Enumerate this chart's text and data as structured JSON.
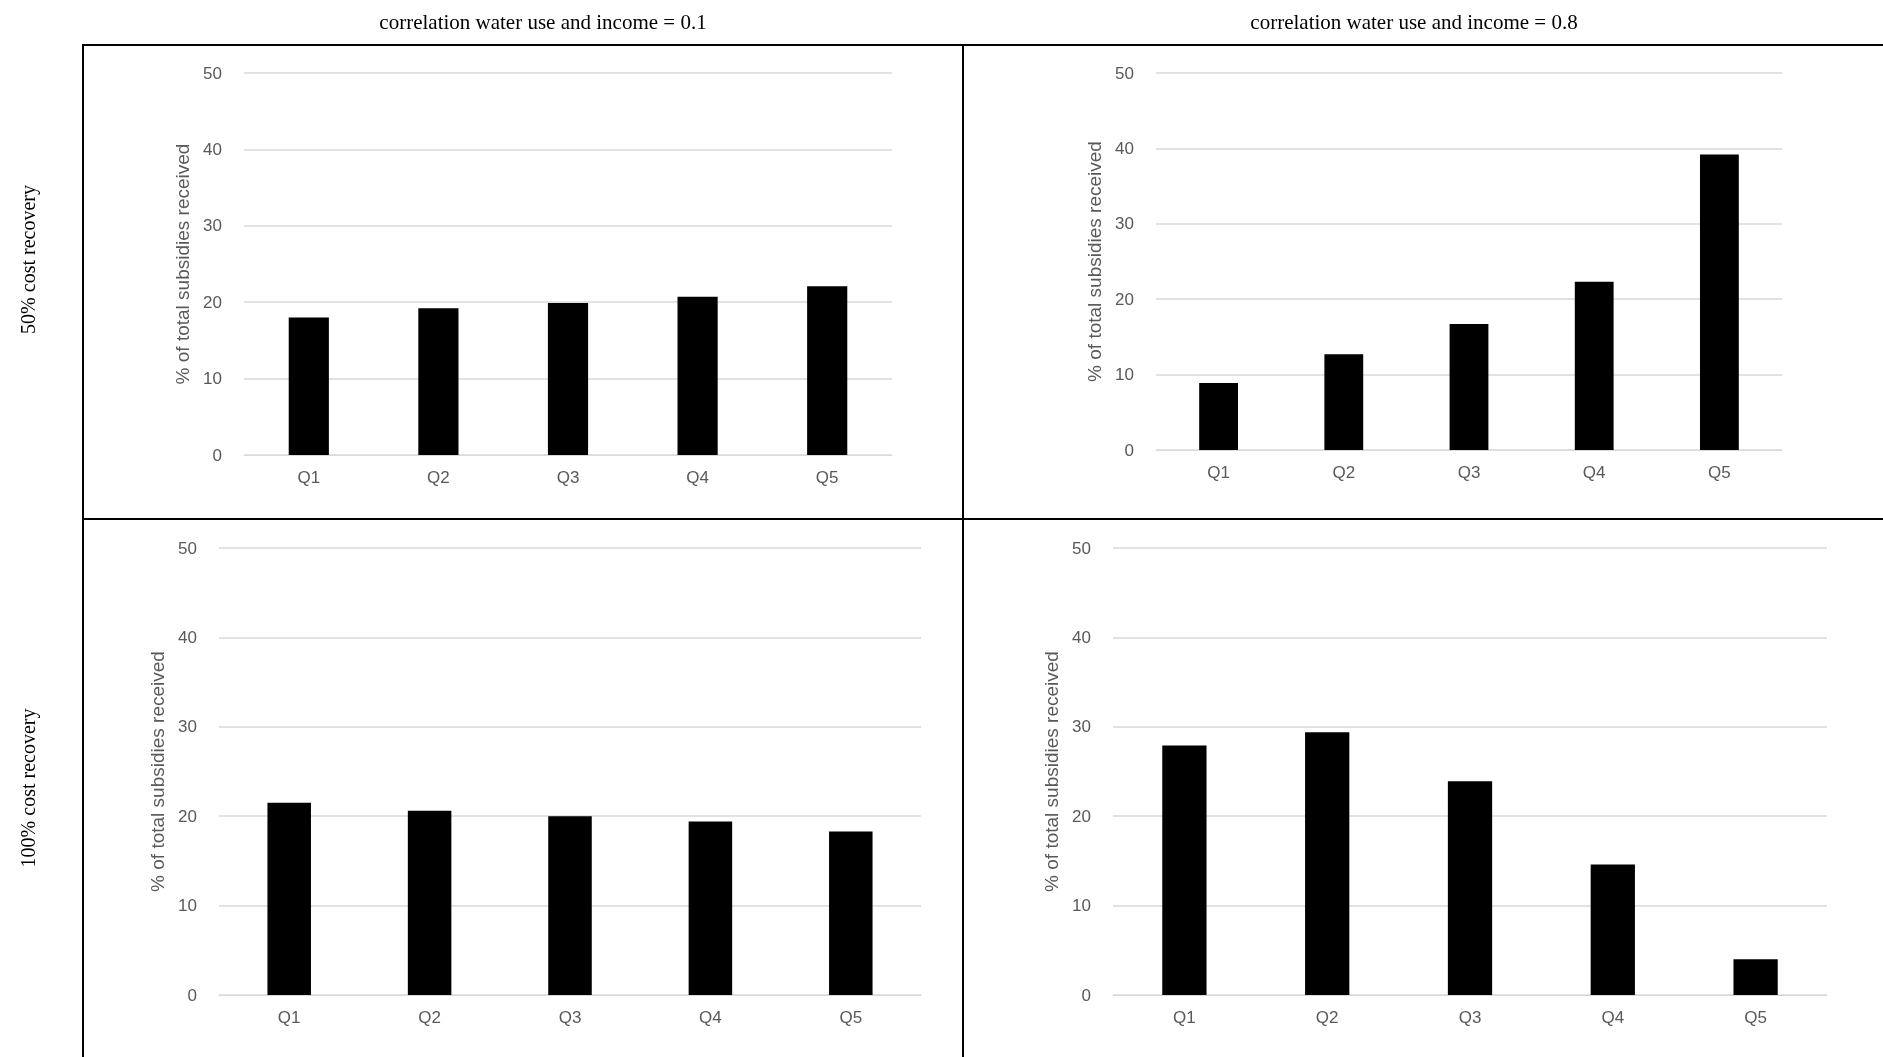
{
  "chart_data": [
    {
      "type": "bar",
      "title": "correlation water use and income = 0.1",
      "annotations": [
        "50% cost recovery"
      ],
      "ylabel": "% of total subsidies received",
      "categories": [
        "Q1",
        "Q2",
        "Q3",
        "Q4",
        "Q5"
      ],
      "values": [
        18.0,
        19.2,
        19.9,
        20.7,
        22.1
      ],
      "color": "#000000",
      "ylim": [
        0,
        50
      ],
      "yticks": [
        0,
        10,
        20,
        30,
        40,
        50
      ],
      "grid": "y"
    },
    {
      "type": "bar",
      "title": "correlation water use and income = 0.8",
      "ylabel": "% of total subsidies received",
      "categories": [
        "Q1",
        "Q2",
        "Q3",
        "Q4",
        "Q5"
      ],
      "values": [
        8.9,
        12.7,
        16.7,
        22.3,
        39.2
      ],
      "color": "#000000",
      "ylim": [
        0,
        50
      ],
      "yticks": [
        0,
        10,
        20,
        30,
        40,
        50
      ],
      "grid": "y"
    },
    {
      "type": "bar",
      "annotations": [
        "100% cost recovery"
      ],
      "ylabel": "% of total subsidies received",
      "categories": [
        "Q1",
        "Q2",
        "Q3",
        "Q4",
        "Q5"
      ],
      "values": [
        21.5,
        20.6,
        20.0,
        19.4,
        18.3
      ],
      "color": "#000000",
      "ylim": [
        0,
        50
      ],
      "yticks": [
        0,
        10,
        20,
        30,
        40,
        50
      ],
      "grid": "y"
    },
    {
      "type": "bar",
      "ylabel": "% of total subsidies received",
      "categories": [
        "Q1",
        "Q2",
        "Q3",
        "Q4",
        "Q5"
      ],
      "values": [
        27.9,
        29.4,
        23.9,
        14.6,
        4.0
      ],
      "color": "#000000",
      "ylim": [
        0,
        50
      ],
      "yticks": [
        0,
        10,
        20,
        30,
        40,
        50
      ],
      "grid": "y"
    }
  ]
}
